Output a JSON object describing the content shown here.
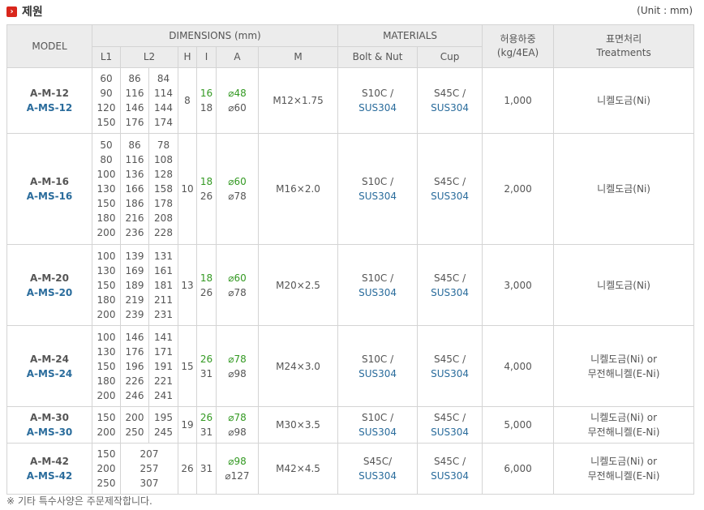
{
  "header": {
    "icon": "chevron-right-icon",
    "title": "제원",
    "unit": "(Unit : mm)"
  },
  "columns": {
    "model": "MODEL",
    "dimensions": "DIMENSIONS (mm)",
    "materials": "MATERIALS",
    "load_line1": "허용하중",
    "load_line2": "(kg/4EA)",
    "treat_line1": "표면처리",
    "treat_line2": "Treatments",
    "l1": "L1",
    "l2": "L2",
    "h": "H",
    "i": "I",
    "a": "A",
    "m": "M",
    "bolt": "Bolt & Nut",
    "cup": "Cup"
  },
  "rows": [
    {
      "model1": "A-M-12",
      "model2": "A-MS-12",
      "l1": [
        "60",
        "90",
        "120",
        "150"
      ],
      "l2a": [
        "86",
        "116",
        "146",
        "176"
      ],
      "l2b": [
        "84",
        "114",
        "144",
        "174"
      ],
      "h": "8",
      "i": [
        "16",
        "18"
      ],
      "a": [
        "⌀48",
        "⌀60"
      ],
      "m": "M12×1.75",
      "bolt1": "S10C /",
      "bolt2": "SUS304",
      "cup1": "S45C /",
      "cup2": "SUS304",
      "load": "1,000",
      "treat": [
        "니켈도금(Ni)"
      ]
    },
    {
      "model1": "A-M-16",
      "model2": "A-MS-16",
      "l1": [
        "50",
        "80",
        "100",
        "130",
        "150",
        "180",
        "200"
      ],
      "l2a": [
        "86",
        "116",
        "136",
        "166",
        "186",
        "216",
        "236"
      ],
      "l2b": [
        "78",
        "108",
        "128",
        "158",
        "178",
        "208",
        "228"
      ],
      "h": "10",
      "i": [
        "18",
        "26"
      ],
      "a": [
        "⌀60",
        "⌀78"
      ],
      "m": "M16×2.0",
      "bolt1": "S10C /",
      "bolt2": "SUS304",
      "cup1": "S45C /",
      "cup2": "SUS304",
      "load": "2,000",
      "treat": [
        "니켈도금(Ni)"
      ]
    },
    {
      "model1": "A-M-20",
      "model2": "A-MS-20",
      "l1": [
        "100",
        "130",
        "150",
        "180",
        "200"
      ],
      "l2a": [
        "139",
        "169",
        "189",
        "219",
        "239"
      ],
      "l2b": [
        "131",
        "161",
        "181",
        "211",
        "231"
      ],
      "h": "13",
      "i": [
        "18",
        "26"
      ],
      "a": [
        "⌀60",
        "⌀78"
      ],
      "m": "M20×2.5",
      "bolt1": "S10C /",
      "bolt2": "SUS304",
      "cup1": "S45C /",
      "cup2": "SUS304",
      "load": "3,000",
      "treat": [
        "니켈도금(Ni)"
      ]
    },
    {
      "model1": "A-M-24",
      "model2": "A-MS-24",
      "l1": [
        "100",
        "130",
        "150",
        "180",
        "200"
      ],
      "l2a": [
        "146",
        "176",
        "196",
        "226",
        "246"
      ],
      "l2b": [
        "141",
        "171",
        "191",
        "221",
        "241"
      ],
      "h": "15",
      "i": [
        "26",
        "31"
      ],
      "a": [
        "⌀78",
        "⌀98"
      ],
      "m": "M24×3.0",
      "bolt1": "S10C /",
      "bolt2": "SUS304",
      "cup1": "S45C /",
      "cup2": "SUS304",
      "load": "4,000",
      "treat": [
        "니켈도금(Ni) or",
        "무전해니켈(E-Ni)"
      ]
    },
    {
      "model1": "A-M-30",
      "model2": "A-MS-30",
      "l1": [
        "150",
        "200"
      ],
      "l2a": [
        "200",
        "250"
      ],
      "l2b": [
        "195",
        "245"
      ],
      "h": "19",
      "i": [
        "26",
        "31"
      ],
      "a": [
        "⌀78",
        "⌀98"
      ],
      "m": "M30×3.5",
      "bolt1": "S10C /",
      "bolt2": "SUS304",
      "cup1": "S45C /",
      "cup2": "SUS304",
      "load": "5,000",
      "treat": [
        "니켈도금(Ni) or",
        "무전해니켈(E-Ni)"
      ]
    },
    {
      "model1": "A-M-42",
      "model2": "A-MS-42",
      "l1": [
        "150",
        "200",
        "250"
      ],
      "l2": [
        "207",
        "257",
        "307"
      ],
      "h": "26",
      "i": "31",
      "a": [
        "⌀98",
        "⌀127"
      ],
      "m": "M42×4.5",
      "bolt1": "S45C/",
      "bolt2": "SUS304",
      "cup1": "S45C /",
      "cup2": "SUS304",
      "load": "6,000",
      "treat": [
        "니켈도금(Ni) or",
        "무전해니켈(E-Ni)"
      ]
    }
  ],
  "footnote": "※ 기타 특수사양은 주문제작합니다."
}
